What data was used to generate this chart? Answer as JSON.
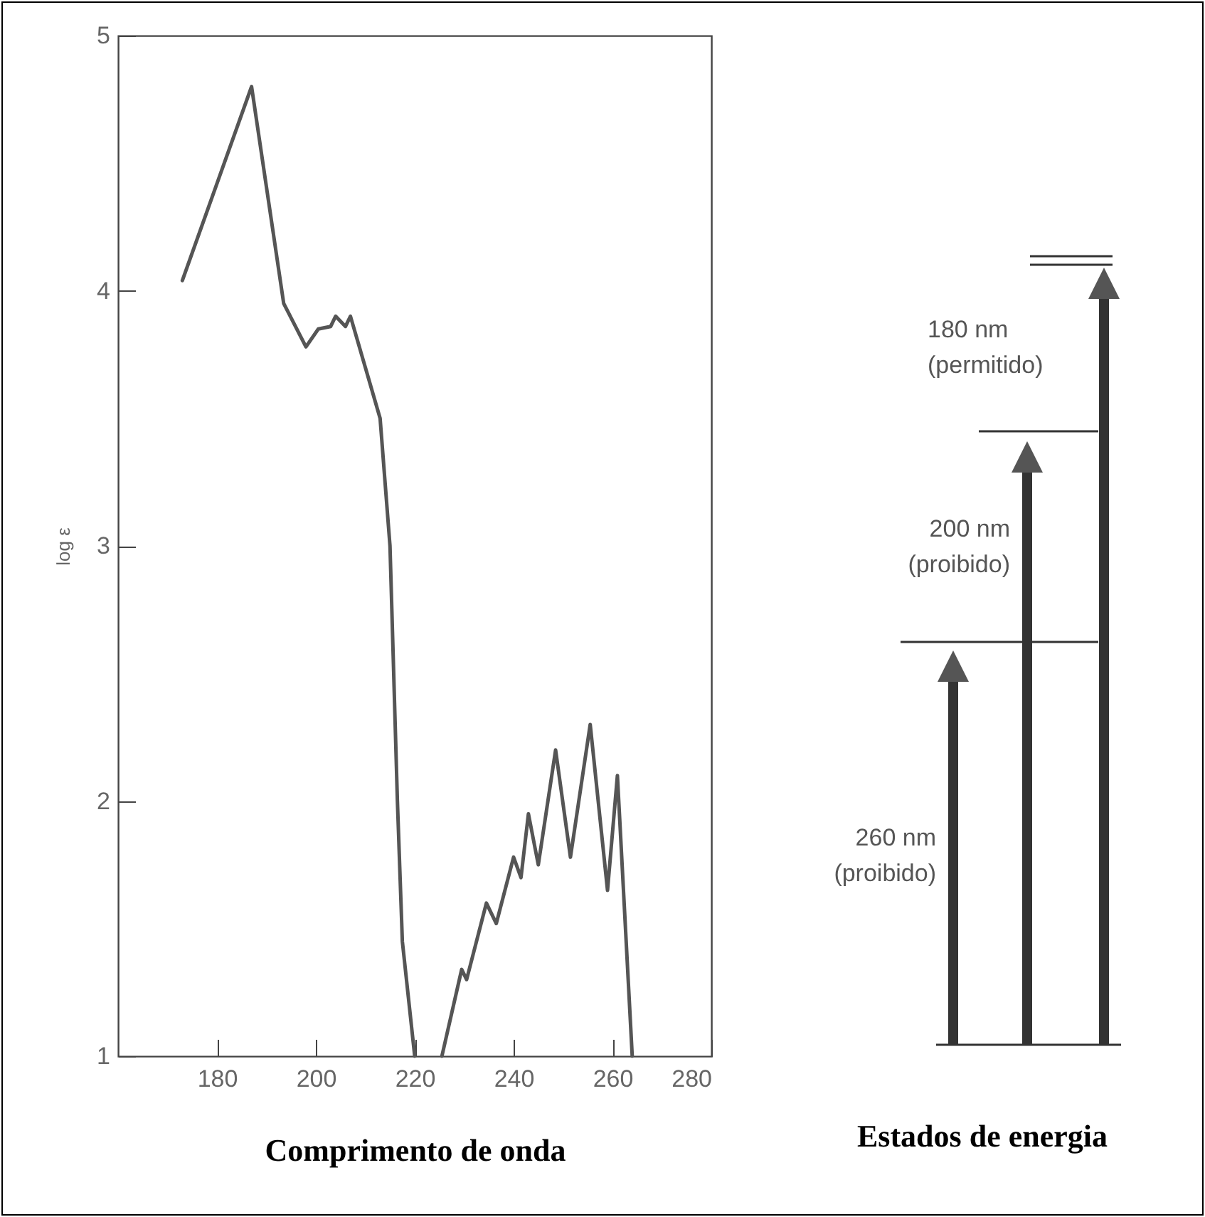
{
  "chart_data": [
    {
      "type": "line",
      "xlabel": "Comprimento de onda",
      "ylabel": "log ε",
      "x": [
        173,
        187,
        193.5,
        198,
        200.5,
        203,
        204,
        206,
        207,
        210,
        213,
        215,
        216.5,
        217.5,
        220,
        222.5,
        225.5,
        229.5,
        230.5,
        234.5,
        236.5,
        240,
        241.5,
        243,
        245,
        248.5,
        251.5,
        255.5,
        259,
        261,
        264
      ],
      "series": [
        {
          "color": "#555555",
          "values": [
            4.04,
            4.8,
            3.95,
            3.78,
            3.85,
            3.86,
            3.9,
            3.86,
            3.9,
            3.7,
            3.5,
            3.0,
            2.0,
            1.45,
            1.0,
            null,
            1.0,
            1.34,
            1.3,
            1.6,
            1.52,
            1.78,
            1.7,
            1.95,
            1.75,
            2.2,
            1.78,
            2.3,
            1.65,
            2.1,
            1.0
          ]
        }
      ],
      "xlim": [
        160,
        280
      ],
      "xticks": [
        180,
        200,
        220,
        240,
        260,
        280
      ],
      "ylim": [
        1,
        5
      ],
      "yticks": [
        1,
        2,
        3,
        4,
        5
      ],
      "grid": false,
      "legend": false
    },
    {
      "type": "other",
      "xlabel": "Estados de energia",
      "annotations": [
        "180 nm",
        "(permitido)",
        "200 nm",
        "(proibido)",
        "260 nm",
        "(proibido)"
      ]
    }
  ]
}
